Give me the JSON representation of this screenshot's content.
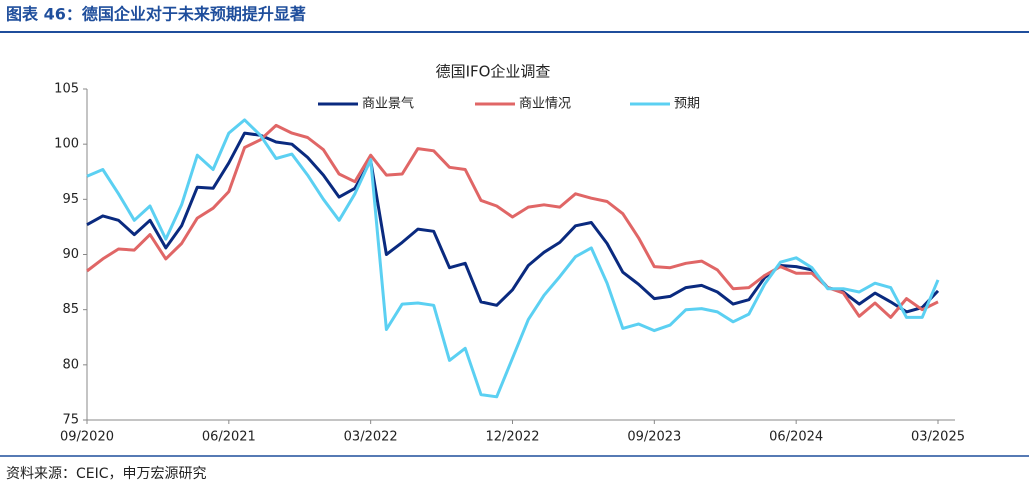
{
  "header": {
    "title": "图表 46：德国企业对于未来预期提升显著"
  },
  "chart_data": {
    "type": "line",
    "title": "德国IFO企业调查",
    "categories": [
      "09/2020",
      null,
      null,
      null,
      null,
      null,
      null,
      null,
      null,
      "06/2021",
      null,
      null,
      null,
      null,
      null,
      null,
      null,
      null,
      "03/2022",
      null,
      null,
      null,
      null,
      null,
      null,
      null,
      null,
      "12/2022",
      null,
      null,
      null,
      null,
      null,
      null,
      null,
      null,
      "09/2023",
      null,
      null,
      null,
      null,
      null,
      null,
      null,
      null,
      "06/2024",
      null,
      null,
      null,
      null,
      null,
      null,
      null,
      null,
      "03/2025"
    ],
    "series": [
      {
        "name": "商业景气",
        "color": "#0a2a7f",
        "values": [
          92.7,
          93.5,
          93.1,
          91.8,
          93.1,
          90.6,
          92.6,
          96.1,
          96.0,
          98.3,
          101.0,
          100.8,
          100.2,
          100.0,
          98.8,
          97.2,
          95.2,
          96.0,
          98.5,
          90.0,
          91.1,
          92.3,
          92.1,
          88.8,
          89.2,
          85.7,
          85.4,
          86.8,
          89.0,
          90.2,
          91.1,
          92.6,
          92.9,
          91.0,
          88.4,
          87.3,
          86.0,
          86.2,
          87.0,
          87.2,
          86.6,
          85.5,
          85.9,
          87.9,
          89.0,
          88.9,
          88.6,
          87.0,
          86.6,
          85.5,
          86.5,
          85.7,
          84.8,
          85.2,
          86.7
        ]
      },
      {
        "name": "商业情况",
        "color": "#e06666",
        "values": [
          88.5,
          89.6,
          90.5,
          90.4,
          91.8,
          89.6,
          91.0,
          93.3,
          94.2,
          95.7,
          99.7,
          100.4,
          101.7,
          101.0,
          100.6,
          99.5,
          97.3,
          96.6,
          99.0,
          97.2,
          97.3,
          99.6,
          99.4,
          97.9,
          97.7,
          94.9,
          94.4,
          93.4,
          94.3,
          94.5,
          94.3,
          95.5,
          95.1,
          94.8,
          93.7,
          91.5,
          88.9,
          88.8,
          89.2,
          89.4,
          88.6,
          86.9,
          87.0,
          88.1,
          88.9,
          88.3,
          88.3,
          87.0,
          86.5,
          84.4,
          85.6,
          84.3,
          86.0,
          85.0,
          85.7
        ]
      },
      {
        "name": "预期",
        "color": "#5bd0f2",
        "values": [
          97.1,
          97.7,
          95.5,
          93.1,
          94.4,
          91.4,
          94.5,
          99.0,
          97.7,
          101.0,
          102.2,
          100.8,
          98.7,
          99.1,
          97.2,
          95.0,
          93.1,
          95.5,
          98.6,
          83.2,
          85.5,
          85.6,
          85.4,
          80.4,
          81.5,
          77.3,
          77.1,
          80.6,
          84.1,
          86.3,
          88.0,
          89.8,
          90.6,
          87.4,
          83.3,
          83.7,
          83.1,
          83.6,
          85.0,
          85.1,
          84.8,
          83.9,
          84.6,
          87.3,
          89.3,
          89.7,
          88.8,
          86.9,
          86.9,
          86.6,
          87.4,
          87.0,
          84.3,
          84.3,
          87.7
        ]
      }
    ],
    "ylim": [
      75,
      105
    ],
    "yticks": [
      75,
      80,
      85,
      90,
      95,
      100,
      105
    ],
    "grid": false,
    "legend": "top"
  },
  "footer": {
    "source": "资料来源：CEIC，申万宏源研究"
  }
}
